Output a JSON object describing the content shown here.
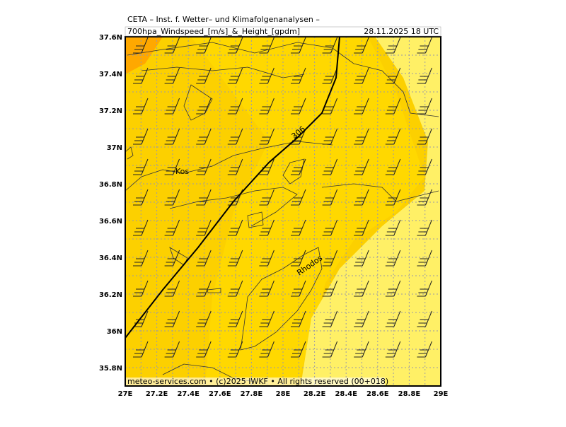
{
  "header": {
    "line1": "CETA – Inst. f. Wetter– und Klimafolgenanalysen –",
    "line2": "700hpa_Windspeed_[m/s]_&_Height_[gpdm]",
    "date": "28.11.2025 18 UTC"
  },
  "axes": {
    "xticks": [
      "27E",
      "27.2E",
      "27.4E",
      "27.6E",
      "27.8E",
      "28E",
      "28.2E",
      "28.4E",
      "28.6E",
      "28.8E",
      "29E"
    ],
    "yticks": [
      "37.6N",
      "37.4N",
      "37.2N",
      "37N",
      "36.8N",
      "36.6N",
      "36.4N",
      "36.2N",
      "36N",
      "35.8N"
    ]
  },
  "labels": {
    "places": [
      "Kos",
      "Rhodos"
    ],
    "contour": "306"
  },
  "footer": "meteo-services.com • (c)2025 IWKF • All rights reserved (00+018)"
}
